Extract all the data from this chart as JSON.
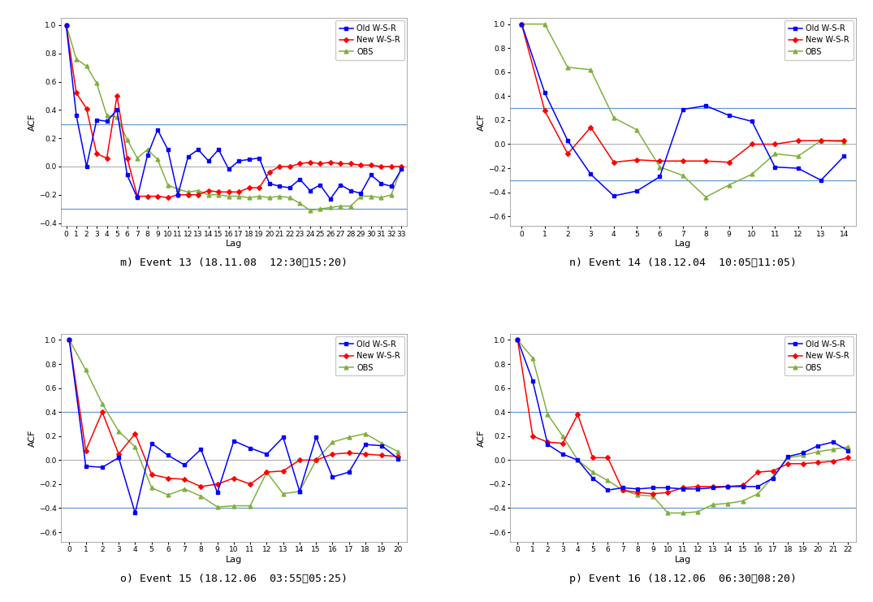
{
  "panels": [
    {
      "label": "m) Event 13 (18.11.08  12:30～15:20)",
      "xlim": [
        -0.5,
        33.5
      ],
      "ylim": [
        -0.42,
        1.05
      ],
      "yticks": [
        -0.4,
        -0.2,
        0.0,
        0.2,
        0.4,
        0.6,
        0.8,
        1.0
      ],
      "xticks": [
        0,
        1,
        2,
        3,
        4,
        5,
        6,
        7,
        8,
        9,
        10,
        11,
        12,
        13,
        14,
        15,
        16,
        17,
        18,
        19,
        20,
        21,
        22,
        23,
        24,
        25,
        26,
        27,
        28,
        29,
        30,
        31,
        32,
        33
      ],
      "hlines": [
        0.3,
        -0.3
      ],
      "blue": [
        1.0,
        0.36,
        0.0,
        0.33,
        0.32,
        0.4,
        -0.06,
        -0.22,
        0.08,
        0.26,
        0.12,
        -0.2,
        0.07,
        0.12,
        0.04,
        0.12,
        -0.02,
        0.04,
        0.05,
        0.06,
        -0.12,
        -0.14,
        -0.15,
        -0.09,
        -0.17,
        -0.13,
        -0.23,
        -0.13,
        -0.17,
        -0.19,
        -0.06,
        -0.12,
        -0.14,
        -0.02
      ],
      "red": [
        1.0,
        0.52,
        0.41,
        0.09,
        0.06,
        0.5,
        0.06,
        -0.21,
        -0.21,
        -0.21,
        -0.22,
        -0.2,
        -0.2,
        -0.2,
        -0.17,
        -0.18,
        -0.18,
        -0.18,
        -0.15,
        -0.15,
        -0.04,
        0.0,
        0.0,
        0.02,
        0.03,
        0.02,
        0.03,
        0.02,
        0.02,
        0.01,
        0.01,
        0.0,
        0.0,
        0.0
      ],
      "green": [
        1.0,
        0.76,
        0.71,
        0.59,
        0.36,
        0.35,
        0.19,
        0.06,
        0.12,
        0.05,
        -0.13,
        -0.16,
        -0.18,
        -0.17,
        -0.2,
        -0.2,
        -0.21,
        -0.21,
        -0.22,
        -0.21,
        -0.22,
        -0.21,
        -0.22,
        -0.26,
        -0.31,
        -0.3,
        -0.29,
        -0.28,
        -0.28,
        -0.21,
        -0.21,
        -0.22,
        -0.2,
        -0.01
      ]
    },
    {
      "label": "n) Event 14 (18.12.04  10:05～11:05)",
      "xlim": [
        -0.5,
        14.5
      ],
      "ylim": [
        -0.68,
        1.05
      ],
      "yticks": [
        -0.6,
        -0.4,
        -0.2,
        0.0,
        0.2,
        0.4,
        0.6,
        0.8,
        1.0
      ],
      "xticks": [
        0,
        1,
        2,
        3,
        4,
        5,
        6,
        7,
        8,
        9,
        10,
        11,
        12,
        13,
        14
      ],
      "hlines": [
        0.3,
        -0.3
      ],
      "blue": [
        1.0,
        0.43,
        0.03,
        -0.25,
        -0.43,
        -0.39,
        -0.27,
        0.29,
        0.32,
        0.24,
        0.19,
        -0.19,
        -0.2,
        -0.3,
        -0.1
      ],
      "red": [
        1.0,
        0.28,
        -0.08,
        0.14,
        -0.15,
        -0.13,
        -0.14,
        -0.14,
        -0.14,
        -0.15,
        0.0,
        0.0,
        0.03,
        0.03,
        0.03
      ],
      "green": [
        1.0,
        1.0,
        0.64,
        0.62,
        0.22,
        0.12,
        -0.19,
        -0.26,
        -0.44,
        -0.34,
        -0.25,
        -0.08,
        -0.1,
        0.03,
        0.02
      ]
    },
    {
      "label": "o) Event 15 (18.12.06  03:55～05:25)",
      "xlim": [
        -0.5,
        20.5
      ],
      "ylim": [
        -0.68,
        1.05
      ],
      "yticks": [
        -0.6,
        -0.4,
        -0.2,
        0.0,
        0.2,
        0.4,
        0.6,
        0.8,
        1.0
      ],
      "xticks": [
        0,
        1,
        2,
        3,
        4,
        5,
        6,
        7,
        8,
        9,
        10,
        11,
        12,
        13,
        14,
        15,
        16,
        17,
        18,
        19,
        20
      ],
      "hlines": [
        0.4,
        -0.4
      ],
      "blue": [
        1.0,
        -0.05,
        -0.06,
        0.02,
        -0.44,
        0.14,
        0.04,
        -0.04,
        0.09,
        -0.27,
        0.16,
        0.1,
        0.05,
        0.19,
        -0.26,
        0.19,
        -0.14,
        -0.1,
        0.13,
        0.12,
        0.01
      ],
      "red": [
        1.0,
        0.08,
        0.4,
        0.05,
        0.22,
        -0.12,
        -0.15,
        -0.16,
        -0.22,
        -0.2,
        -0.15,
        -0.2,
        -0.1,
        -0.09,
        0.0,
        0.0,
        0.05,
        0.06,
        0.05,
        0.04,
        0.03
      ],
      "green": [
        1.0,
        0.75,
        0.47,
        0.24,
        0.11,
        -0.23,
        -0.29,
        -0.24,
        -0.3,
        -0.39,
        -0.38,
        -0.38,
        -0.1,
        -0.28,
        -0.26,
        0.0,
        0.15,
        0.19,
        0.22,
        0.14,
        0.07
      ]
    },
    {
      "label": "p) Event 16 (18.12.06  06:30～08:20)",
      "xlim": [
        -0.5,
        22.5
      ],
      "ylim": [
        -0.68,
        1.05
      ],
      "yticks": [
        -0.6,
        -0.4,
        -0.2,
        0.0,
        0.2,
        0.4,
        0.6,
        0.8,
        1.0
      ],
      "xticks": [
        0,
        1,
        2,
        3,
        4,
        5,
        6,
        7,
        8,
        9,
        10,
        11,
        12,
        13,
        14,
        15,
        16,
        17,
        18,
        19,
        20,
        21,
        22
      ],
      "hlines": [
        0.4,
        -0.4
      ],
      "blue": [
        1.0,
        0.66,
        0.13,
        0.05,
        0.0,
        -0.15,
        -0.25,
        -0.23,
        -0.24,
        -0.23,
        -0.23,
        -0.24,
        -0.24,
        -0.23,
        -0.22,
        -0.22,
        -0.22,
        -0.15,
        0.03,
        0.06,
        0.12,
        0.15,
        0.08
      ],
      "red": [
        1.0,
        0.2,
        0.15,
        0.14,
        0.38,
        0.02,
        0.02,
        -0.25,
        -0.27,
        -0.28,
        -0.27,
        -0.23,
        -0.22,
        -0.22,
        -0.22,
        -0.21,
        -0.1,
        -0.09,
        -0.03,
        -0.03,
        -0.02,
        -0.01,
        0.02
      ],
      "green": [
        1.0,
        0.85,
        0.38,
        0.2,
        0.0,
        -0.1,
        -0.17,
        -0.25,
        -0.29,
        -0.3,
        -0.44,
        -0.44,
        -0.43,
        -0.37,
        -0.36,
        -0.34,
        -0.28,
        -0.14,
        0.02,
        0.04,
        0.07,
        0.09,
        0.11
      ]
    }
  ],
  "colors": {
    "blue": "#0000FF",
    "red": "#FF0000",
    "green": "#80B040",
    "hline": "#6699CC"
  },
  "legend_labels": [
    "Old W-S-R",
    "New W-S-R",
    "OBS"
  ],
  "ylabel": "ACF",
  "xlabel": "Lag"
}
